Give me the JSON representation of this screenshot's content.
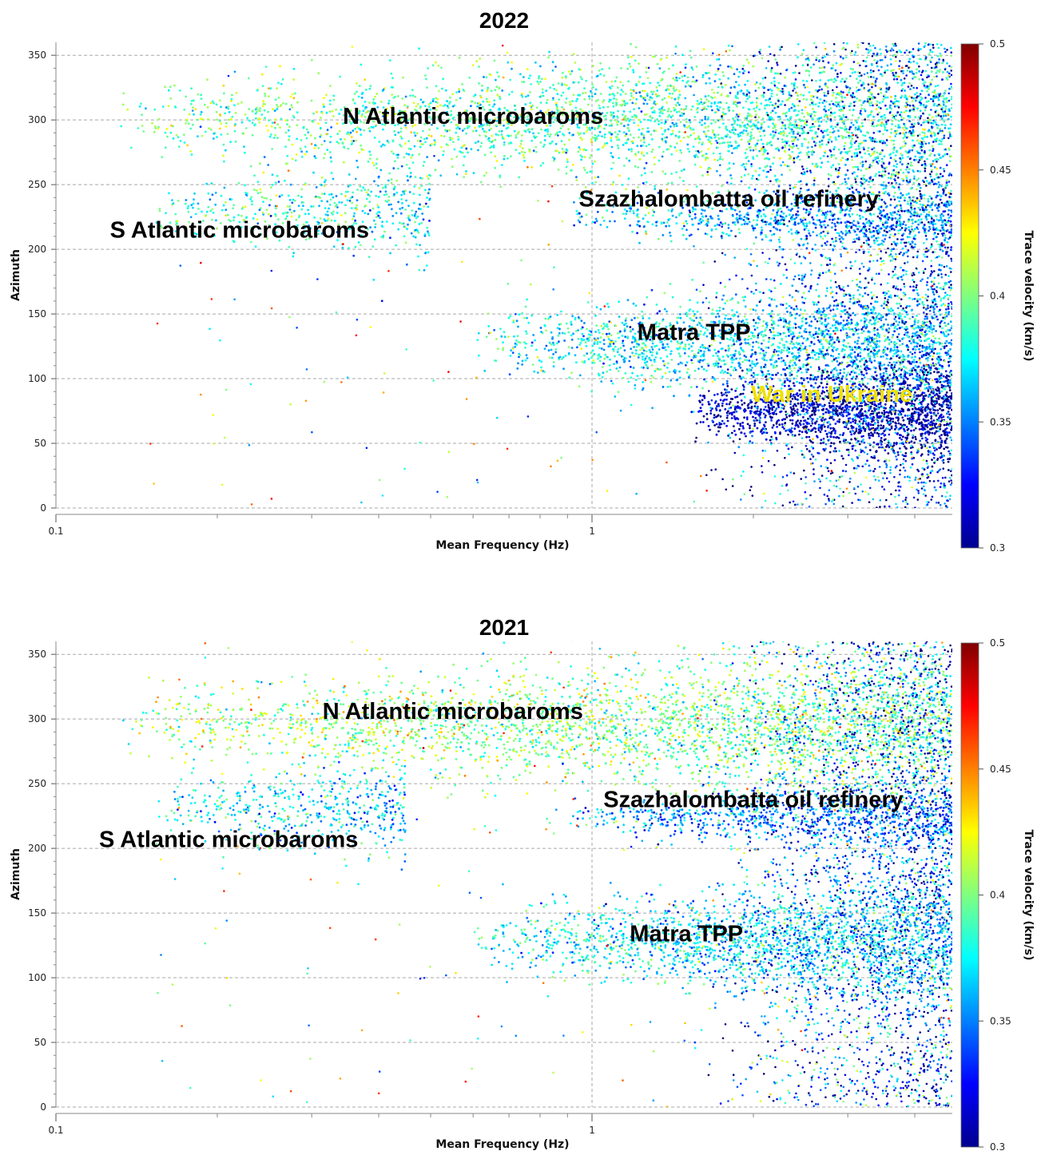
{
  "chart_data": [
    {
      "type": "scatter",
      "title": "2022",
      "xlabel": "Mean Frequency (Hz)",
      "ylabel": "Azimuth",
      "x_scale": "log",
      "xlim": [
        0.1,
        4.7
      ],
      "ylim": [
        0,
        360
      ],
      "x_ticks": [
        "0.1",
        "1"
      ],
      "y_ticks": [
        "0",
        "50",
        "100",
        "150",
        "200",
        "250",
        "300",
        "350"
      ],
      "grid": true,
      "colorbar": {
        "label": "Trace velocity (km/s)",
        "range": [
          0.3,
          0.5
        ],
        "ticks": [
          "0.3",
          "0.35",
          "0.4",
          "0.45",
          "0.5"
        ],
        "colormap": "jet"
      },
      "clusters": [
        {
          "name": "N Atlantic microbaroms",
          "x_range": [
            0.13,
            4.7
          ],
          "y_center": 300,
          "velocity": 0.39
        },
        {
          "name": "S Atlantic microbaroms",
          "x_range": [
            0.15,
            0.5
          ],
          "y_center": 230,
          "velocity": 0.38
        },
        {
          "name": "Szazhalombatta oil refinery",
          "x_range": [
            0.9,
            4.7
          ],
          "y_center": 225,
          "velocity": 0.36
        },
        {
          "name": "Matra TPP",
          "x_range": [
            0.6,
            4.7
          ],
          "y_center": 128,
          "velocity": 0.37
        },
        {
          "name": "War in Ukraine",
          "x_range": [
            1.5,
            4.7
          ],
          "y_center": 75,
          "velocity": 0.31
        }
      ],
      "annotations": [
        {
          "text": "N Atlantic microbaroms",
          "x": 0.6,
          "y": 297,
          "color": "#000000"
        },
        {
          "text": "Szazhalombatta oil refinery",
          "x": 1.8,
          "y": 233,
          "color": "#000000"
        },
        {
          "text": "S Atlantic microbaroms",
          "x": 0.22,
          "y": 209,
          "color": "#000000"
        },
        {
          "text": "Matra TPP",
          "x": 1.55,
          "y": 130,
          "color": "#000000"
        },
        {
          "text": "War in Ukraine",
          "x": 2.8,
          "y": 82,
          "color": "#f0e000"
        }
      ]
    },
    {
      "type": "scatter",
      "title": "2021",
      "xlabel": "Mean Frequency (Hz)",
      "ylabel": "Azimuth",
      "x_scale": "log",
      "xlim": [
        0.1,
        4.7
      ],
      "ylim": [
        0,
        360
      ],
      "x_ticks": [
        "0.1",
        "1"
      ],
      "y_ticks": [
        "0",
        "50",
        "100",
        "150",
        "200",
        "250",
        "300",
        "350"
      ],
      "grid": true,
      "colorbar": {
        "label": "Trace velocity (km/s)",
        "range": [
          0.3,
          0.5
        ],
        "ticks": [
          "0.3",
          "0.35",
          "0.4",
          "0.45",
          "0.5"
        ],
        "colormap": "jet"
      },
      "clusters": [
        {
          "name": "N Atlantic microbaroms",
          "x_range": [
            0.13,
            4.7
          ],
          "y_center": 295,
          "velocity": 0.4
        },
        {
          "name": "S Atlantic microbaroms",
          "x_range": [
            0.15,
            0.45
          ],
          "y_center": 230,
          "velocity": 0.37
        },
        {
          "name": "Szazhalombatta oil refinery",
          "x_range": [
            0.9,
            4.7
          ],
          "y_center": 225,
          "velocity": 0.35
        },
        {
          "name": "Matra TPP",
          "x_range": [
            0.6,
            4.7
          ],
          "y_center": 128,
          "velocity": 0.37
        }
      ],
      "annotations": [
        {
          "text": "N Atlantic microbaroms",
          "x": 0.55,
          "y": 300,
          "color": "#000000"
        },
        {
          "text": "Szazhalombatta oil refinery",
          "x": 2.0,
          "y": 232,
          "color": "#000000"
        },
        {
          "text": "S Atlantic microbaroms",
          "x": 0.21,
          "y": 201,
          "color": "#000000"
        },
        {
          "text": "Matra TPP",
          "x": 1.5,
          "y": 128,
          "color": "#000000"
        }
      ]
    }
  ]
}
